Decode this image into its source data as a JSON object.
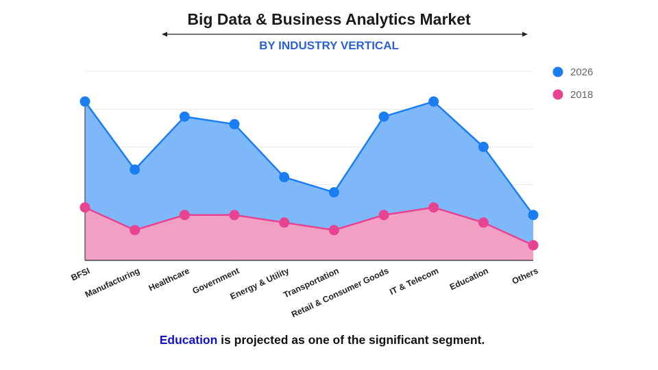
{
  "chart_data": {
    "type": "area",
    "title": "Big Data & Business Analytics Market",
    "subtitle": "BY INDUSTRY VERTICAL",
    "categories": [
      "BFSI",
      "Manufacturing",
      "Healthcare",
      "Government",
      "Energy & Utility",
      "Transportation",
      "Retail & Consumer Goods",
      "IT & Telecom",
      "Education",
      "Others"
    ],
    "series": [
      {
        "name": "2026",
        "color": "#1a7ef2",
        "fill": "#7fb8f8",
        "values": [
          21,
          12,
          19,
          18,
          11,
          9,
          19,
          21,
          15,
          6
        ]
      },
      {
        "name": "2018",
        "color": "#e84390",
        "fill": "#f29fc4",
        "values": [
          7,
          4,
          6,
          6,
          5,
          4,
          6,
          7,
          5,
          2
        ]
      }
    ],
    "ylim": [
      0,
      25
    ],
    "grid": true,
    "legend_position": "right",
    "xlabel": "",
    "ylabel": ""
  },
  "footer": {
    "highlight": "Education",
    "text": " is projected as one of the significant segment."
  }
}
